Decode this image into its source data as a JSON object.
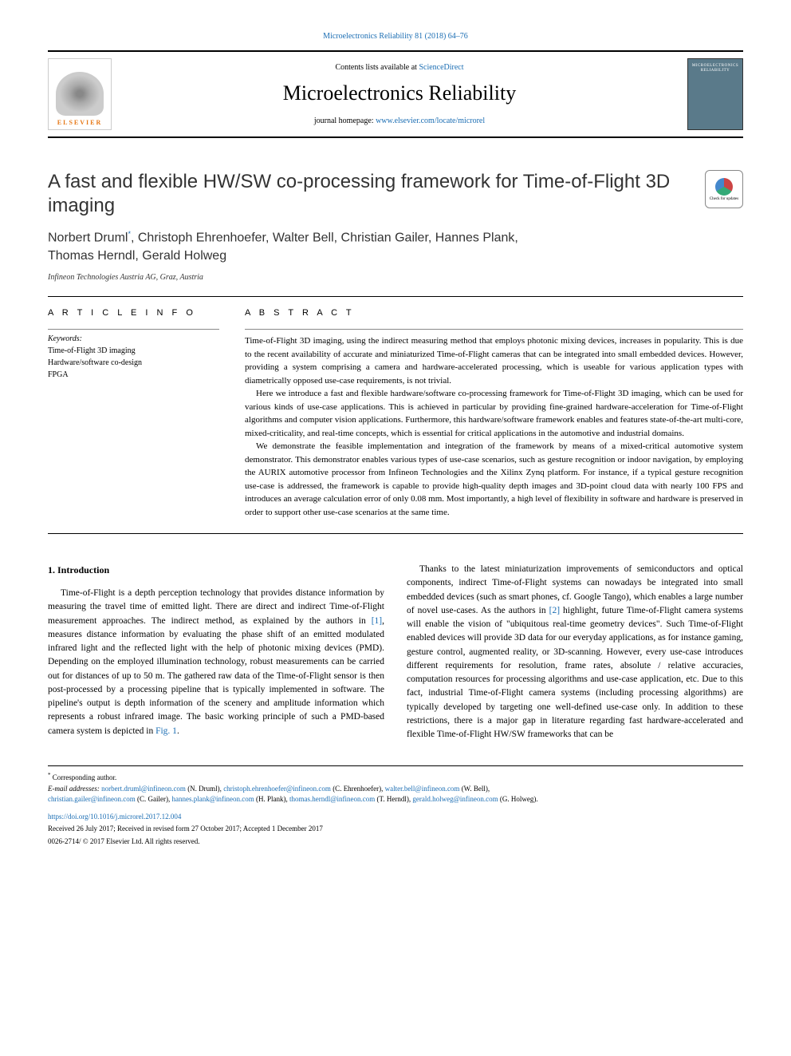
{
  "top_citation": "Microelectronics Reliability 81 (2018) 64–76",
  "header": {
    "contents_prefix": "Contents lists available at ",
    "contents_link": "ScienceDirect",
    "journal_name": "Microelectronics Reliability",
    "homepage_prefix": "journal homepage: ",
    "homepage_link": "www.elsevier.com/locate/microrel",
    "elsevier_label": "ELSEVIER",
    "cover_text": "MICROELECTRONICS RELIABILITY"
  },
  "article": {
    "title": "A fast and flexible HW/SW co-processing framework for Time-of-Flight 3D imaging",
    "check_updates": "Check for updates",
    "authors": "Norbert Druml*, Christoph Ehrenhoefer, Walter Bell, Christian Gailer, Hannes Plank, Thomas Herndl, Gerald Holweg",
    "affiliation": "Infineon Technologies Austria AG, Graz, Austria"
  },
  "info": {
    "heading": "A R T I C L E  I N F O",
    "keywords_label": "Keywords:",
    "keywords": [
      "Time-of-Flight 3D imaging",
      "Hardware/software co-design",
      "FPGA"
    ]
  },
  "abstract": {
    "heading": "A B S T R A C T",
    "para1": "Time-of-Flight 3D imaging, using the indirect measuring method that employs photonic mixing devices, increases in popularity. This is due to the recent availability of accurate and miniaturized Time-of-Flight cameras that can be integrated into small embedded devices. However, providing a system comprising a camera and hardware-accelerated processing, which is useable for various application types with diametrically opposed use-case requirements, is not trivial.",
    "para2": "Here we introduce a fast and flexible hardware/software co-processing framework for Time-of-Flight 3D imaging, which can be used for various kinds of use-case applications. This is achieved in particular by providing fine-grained hardware-acceleration for Time-of-Flight algorithms and computer vision applications. Furthermore, this hardware/software framework enables and features state-of-the-art multi-core, mixed-criticality, and real-time concepts, which is essential for critical applications in the automotive and industrial domains.",
    "para3": "We demonstrate the feasible implementation and integration of the framework by means of a mixed-critical automotive system demonstrator. This demonstrator enables various types of use-case scenarios, such as gesture recognition or indoor navigation, by employing the AURIX automotive processor from Infineon Technologies and the Xilinx Zynq platform. For instance, if a typical gesture recognition use-case is addressed, the framework is capable to provide high-quality depth images and 3D-point cloud data with nearly 100 FPS and introduces an average calculation error of only 0.08 mm. Most importantly, a high level of flexibility in software and hardware is preserved in order to support other use-case scenarios at the same time."
  },
  "body": {
    "section_num": "1.",
    "section_title": "Introduction",
    "col1_p1_a": "Time-of-Flight is a depth perception technology that provides distance information by measuring the travel time of emitted light. There are direct and indirect Time-of-Flight measurement approaches. The indirect method, as explained by the authors in ",
    "col1_ref1": "[1]",
    "col1_p1_b": ", measures distance information by evaluating the phase shift of an emitted modulated infrared light and the reflected light with the help of photonic mixing devices (PMD). Depending on the employed illumination technology, robust measurements can be carried out for distances of up to 50 m. The gathered raw data of the Time-of-Flight sensor is then post-processed by a processing pipeline that is typically implemented in software. The pipeline's output is depth information of the scenery and amplitude information which represents a robust infrared image. The basic working principle of such a PMD-based camera system is depicted in ",
    "col1_figref": "Fig. 1",
    "col1_p1_c": ".",
    "col2_p1_a": "Thanks to the latest miniaturization improvements of semiconductors and optical components, indirect Time-of-Flight systems can nowadays be integrated into small embedded devices (such as smart phones, cf. Google Tango), which enables a large number of novel use-cases. As the authors in ",
    "col2_ref2": "[2]",
    "col2_p1_b": " highlight, future Time-of-Flight camera systems will enable the vision of \"ubiquitous real-time geometry devices\". Such Time-of-Flight enabled devices will provide 3D data for our everyday applications, as for instance gaming, gesture control, augmented reality, or 3D-scanning. However, every use-case introduces different requirements for resolution, frame rates, absolute / relative accuracies, computation resources for processing algorithms and use-case application, etc. Due to this fact, industrial Time-of-Flight camera systems (including processing algorithms) are typically developed by targeting one well-defined use-case only. In addition to these restrictions, there is a major gap in literature regarding fast hardware-accelerated and flexible Time-of-Flight HW/SW frameworks that can be"
  },
  "footer": {
    "corr": "Corresponding author.",
    "email_label": "E-mail addresses:",
    "emails": [
      {
        "addr": "norbert.druml@infineon.com",
        "name": "(N. Druml),"
      },
      {
        "addr": "christoph.ehrenhoefer@infineon.com",
        "name": "(C. Ehrenhoefer),"
      },
      {
        "addr": "walter.bell@infineon.com",
        "name": "(W. Bell),"
      },
      {
        "addr": "christian.gailer@infineon.com",
        "name": "(C. Gailer),"
      },
      {
        "addr": "hannes.plank@infineon.com",
        "name": "(H. Plank),"
      },
      {
        "addr": "thomas.herndl@infineon.com",
        "name": "(T. Herndl),"
      },
      {
        "addr": "gerald.holweg@infineon.com",
        "name": "(G. Holweg)."
      }
    ],
    "doi": "https://doi.org/10.1016/j.microrel.2017.12.004",
    "received": "Received 26 July 2017; Received in revised form 27 October 2017; Accepted 1 December 2017",
    "copyright": "0026-2714/ © 2017 Elsevier Ltd. All rights reserved."
  },
  "colors": {
    "link": "#1a6db3",
    "elsevier_orange": "#e67817",
    "cover_bg": "#5a7a8a"
  }
}
